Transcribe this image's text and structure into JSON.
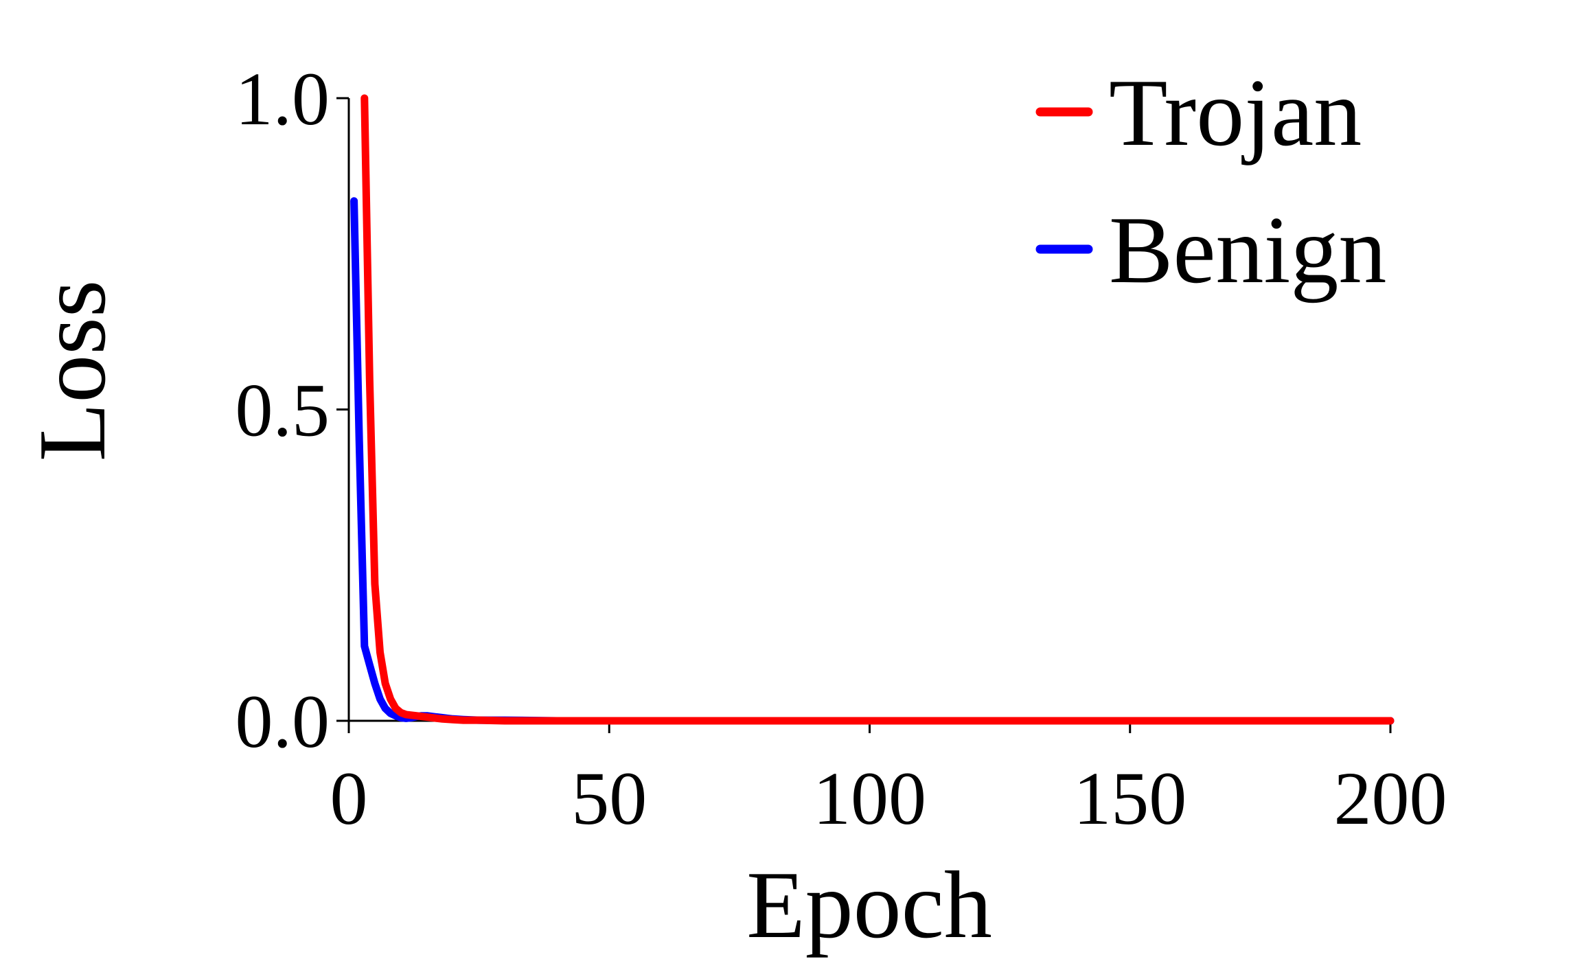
{
  "chart_data": {
    "type": "line",
    "title": "",
    "xlabel": "Epoch",
    "ylabel": "Loss",
    "xlim": [
      0,
      200
    ],
    "ylim": [
      0.0,
      1.0
    ],
    "xticks": [
      0,
      50,
      100,
      150,
      200
    ],
    "xtick_labels": [
      "0",
      "50",
      "100",
      "150",
      "200"
    ],
    "yticks": [
      0.0,
      0.5,
      1.0
    ],
    "ytick_labels": [
      "0.0",
      "0.5",
      "1.0"
    ],
    "grid": false,
    "legend_position": "top-right",
    "series": [
      {
        "name": "Benign",
        "color": "#0000ff",
        "x": [
          1,
          2,
          3,
          4,
          5,
          6,
          7,
          8,
          9,
          10,
          11,
          12,
          13,
          14,
          15,
          16,
          17,
          18,
          19,
          20,
          22,
          25,
          30,
          40,
          60,
          80,
          100,
          120,
          140,
          160,
          180,
          200
        ],
        "y": [
          0.835,
          0.45,
          0.12,
          0.09,
          0.06,
          0.035,
          0.02,
          0.012,
          0.008,
          0.005,
          0.004,
          0.005,
          0.007,
          0.008,
          0.008,
          0.007,
          0.006,
          0.005,
          0.004,
          0.003,
          0.002,
          0.001,
          0.001,
          0.0,
          0.0,
          0.0,
          0.0,
          0.0,
          0.0,
          0.0,
          0.0,
          0.0
        ]
      },
      {
        "name": "Trojan",
        "color": "#ff0000",
        "x": [
          3,
          4,
          5,
          6,
          7,
          8,
          9,
          10,
          11,
          12,
          13,
          14,
          15,
          16,
          17,
          18,
          20,
          22,
          25,
          30,
          40,
          60,
          80,
          100,
          120,
          140,
          160,
          180,
          200
        ],
        "y": [
          1.0,
          0.55,
          0.22,
          0.11,
          0.06,
          0.035,
          0.02,
          0.013,
          0.01,
          0.009,
          0.008,
          0.007,
          0.006,
          0.005,
          0.004,
          0.003,
          0.002,
          0.001,
          0.001,
          0.0,
          0.0,
          0.0,
          0.0,
          0.0,
          0.0,
          0.0,
          0.0,
          0.0,
          0.0
        ]
      }
    ],
    "legend_entries": [
      "Trojan",
      "Benign"
    ]
  }
}
